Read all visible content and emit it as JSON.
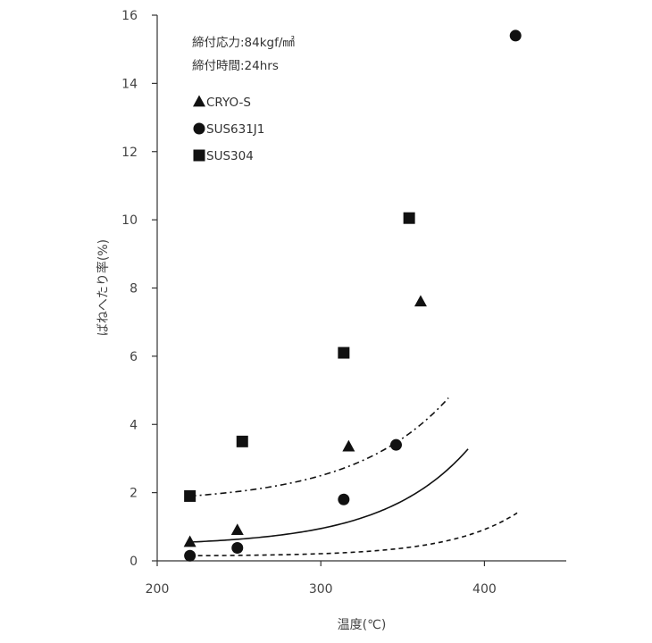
{
  "chart_data": {
    "type": "scatter",
    "title": "",
    "xlabel": "温度(℃)",
    "ylabel": "ばねへたり率(%)",
    "xlim": [
      200,
      450
    ],
    "ylim": [
      0,
      16
    ],
    "x_ticks": [
      200,
      300,
      400
    ],
    "y_ticks": [
      0,
      2,
      4,
      6,
      8,
      10,
      12,
      14,
      16
    ],
    "grid": false,
    "legend_position": "top-left",
    "annotations": [
      "締付応力:84kgf/㎟",
      "締付時間:24hrs"
    ],
    "series": [
      {
        "name": "CRYO-S",
        "marker": "triangle",
        "line_style": "solid",
        "points": [
          {
            "x": 220,
            "y": 0.55
          },
          {
            "x": 249,
            "y": 0.9
          },
          {
            "x": 317,
            "y": 3.35
          },
          {
            "x": 361,
            "y": 7.6
          }
        ],
        "curve": {
          "a": 0.1097,
          "b": 0.01914,
          "x0": 220,
          "x_end": 390
        }
      },
      {
        "name": "SUS631J1",
        "marker": "circle",
        "line_style": "dashed",
        "points": [
          {
            "x": 220,
            "y": 0.15
          },
          {
            "x": 249,
            "y": 0.38
          },
          {
            "x": 314,
            "y": 1.8
          },
          {
            "x": 346,
            "y": 3.4
          },
          {
            "x": 419,
            "y": 15.4
          }
        ],
        "curve": {
          "a": 0.01,
          "b": 0.0242,
          "x0": 220,
          "x_end": 420
        }
      },
      {
        "name": "SUS304",
        "marker": "square",
        "line_style": "dashdot",
        "points": [
          {
            "x": 220,
            "y": 1.9
          },
          {
            "x": 252,
            "y": 3.5
          },
          {
            "x": 314,
            "y": 6.1
          },
          {
            "x": 354,
            "y": 10.05
          }
        ],
        "curve": {
          "a": 0.2,
          "b": 0.0173,
          "x0": 220,
          "x_end": 378
        }
      }
    ]
  }
}
